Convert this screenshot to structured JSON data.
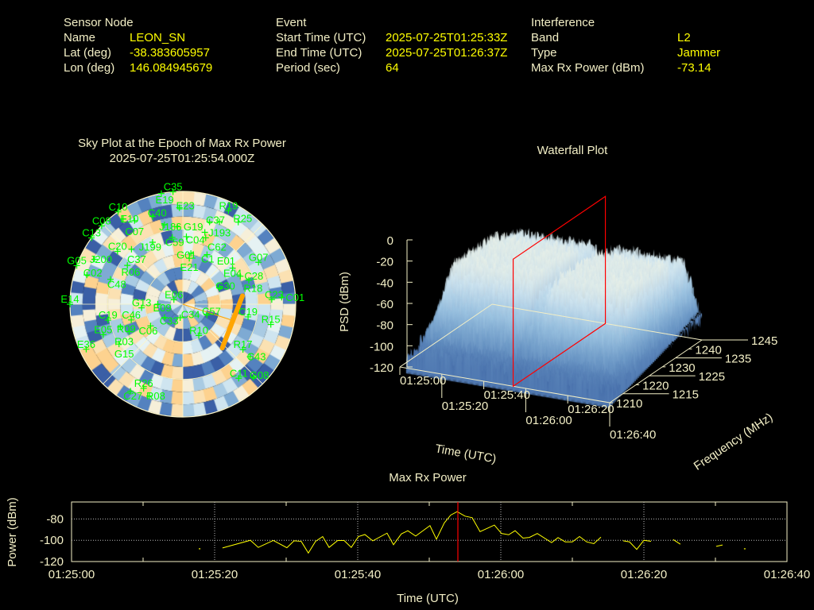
{
  "header": {
    "sensor": {
      "heading": "Sensor Node",
      "name_label": "Name",
      "name": "LEON_SN",
      "lat_label": "Lat (deg)",
      "lat": "-38.383605957",
      "lon_label": "Lon (deg)",
      "lon": "146.084945679"
    },
    "event": {
      "heading": "Event",
      "start_label": "Start Time (UTC)",
      "start": "2025-07-25T01:25:33Z",
      "end_label": "End Time (UTC)",
      "end": "2025-07-25T01:26:37Z",
      "period_label": "Period (sec)",
      "period": "64"
    },
    "interference": {
      "heading": "Interference",
      "band_label": "Band",
      "band": "L2",
      "type_label": "Type",
      "type": "Jammer",
      "power_label": "Max Rx Power (dBm)",
      "power": "-73.14"
    }
  },
  "colors": {
    "label": "#f3efc6",
    "value": "#ffff00",
    "satellite": "#00ff00",
    "jammer": "#ffa500",
    "marker": "#ff0000",
    "line": "#ffff00"
  },
  "chart_data": [
    {
      "type": "scatter",
      "name": "sky_plot",
      "title": "Sky Plot at the Epoch of Max Rx Power",
      "subtitle": "2025-07-25T01:25:54.000Z",
      "elevation_rings": [
        0,
        30,
        60
      ],
      "satellites": [
        {
          "id": "C35",
          "az": 355,
          "el": 0
        },
        {
          "id": "E19",
          "az": 349,
          "el": 0
        },
        {
          "id": "E23",
          "az": 358,
          "el": 13
        },
        {
          "id": "R19",
          "az": 26,
          "el": 7
        },
        {
          "id": "C10",
          "az": 325,
          "el": 0
        },
        {
          "id": "E10",
          "az": 325,
          "el": 7
        },
        {
          "id": "C07",
          "az": 330,
          "el": 13
        },
        {
          "id": "C40",
          "az": 341,
          "el": 16
        },
        {
          "id": "J186",
          "az": 347,
          "el": 25
        },
        {
          "id": "G19",
          "az": 356,
          "el": 28
        },
        {
          "id": "C37",
          "az": 18,
          "el": 21
        },
        {
          "id": "J193",
          "az": 24,
          "el": 18
        },
        {
          "id": "R25",
          "az": 34,
          "el": 11
        },
        {
          "id": "C08",
          "az": 314,
          "el": 0
        },
        {
          "id": "C04",
          "az": 17,
          "el": 30
        },
        {
          "id": "C59",
          "az": 351,
          "el": 36
        },
        {
          "id": "G01",
          "az": 3,
          "el": 36
        },
        {
          "id": "C62",
          "az": 19,
          "el": 34
        },
        {
          "id": "C13",
          "az": 306,
          "el": 0
        },
        {
          "id": "J199",
          "az": 334,
          "el": 35
        },
        {
          "id": "C20",
          "az": 309,
          "el": 23
        },
        {
          "id": "C37",
          "az": 317,
          "el": 30
        },
        {
          "id": "C1",
          "az": 9,
          "el": 49
        },
        {
          "id": "E21",
          "az": 8,
          "el": 53
        },
        {
          "id": "E01",
          "az": 26,
          "el": 46
        },
        {
          "id": "G05",
          "az": 290,
          "el": 0
        },
        {
          "id": "J200",
          "az": 297,
          "el": 11
        },
        {
          "id": "R06",
          "az": 305,
          "el": 36
        },
        {
          "id": "G07",
          "az": 61,
          "el": 21
        },
        {
          "id": "E04",
          "az": 54,
          "el": 41
        },
        {
          "id": "C02",
          "az": 287,
          "el": 10
        },
        {
          "id": "C48",
          "az": 289,
          "el": 29
        },
        {
          "id": "C28",
          "az": 64,
          "el": 39
        },
        {
          "id": "R18",
          "az": 70,
          "el": 34
        },
        {
          "id": "G30",
          "az": 66,
          "el": 58
        },
        {
          "id": "E06",
          "az": 297,
          "el": 82
        },
        {
          "id": "C23",
          "az": 87,
          "el": 19
        },
        {
          "id": "C01",
          "az": 86,
          "el": 11
        },
        {
          "id": "E14",
          "az": 270,
          "el": 0
        },
        {
          "id": "G13",
          "az": 265,
          "el": 57
        },
        {
          "id": "E09",
          "az": 270,
          "el": 70
        },
        {
          "id": "C33",
          "az": 234,
          "el": 72
        },
        {
          "id": "C34",
          "az": 191,
          "el": 79
        },
        {
          "id": "C57",
          "az": 114,
          "el": 69
        },
        {
          "id": "C19",
          "az": 101,
          "el": 37
        },
        {
          "id": "C19",
          "az": 258,
          "el": 29
        },
        {
          "id": "C46",
          "az": 253,
          "el": 47
        },
        {
          "id": "R15",
          "az": 103,
          "el": 18
        },
        {
          "id": "R09",
          "az": 250,
          "el": 37
        },
        {
          "id": "C06",
          "az": 236,
          "el": 59
        },
        {
          "id": "R10",
          "az": 153,
          "el": 62
        },
        {
          "id": "E05",
          "az": 249,
          "el": 22
        },
        {
          "id": "R03",
          "az": 243,
          "el": 42
        },
        {
          "id": "G15",
          "az": 238,
          "el": 30
        },
        {
          "id": "R17",
          "az": 127,
          "el": 30
        },
        {
          "id": "E36",
          "az": 245,
          "el": 5
        },
        {
          "id": "C43",
          "az": 128,
          "el": 22
        },
        {
          "id": "C11",
          "az": 143,
          "el": 16
        },
        {
          "id": "G08",
          "az": 136,
          "el": 9
        },
        {
          "id": "R26",
          "az": 205,
          "el": 16
        },
        {
          "id": "C27",
          "az": 211,
          "el": 9
        },
        {
          "id": "R08",
          "az": 200,
          "el": 12
        }
      ],
      "jammer_track": [
        {
          "az": 82,
          "el": 42
        },
        {
          "az": 138,
          "el": 43
        }
      ],
      "jammer_bearing": {
        "az": 108,
        "el": 49
      }
    },
    {
      "type": "area",
      "name": "waterfall_plot",
      "title": "Waterfall Plot",
      "zlabel": "PSD (dBm)",
      "xlabel": "Time (UTC)",
      "ylabel": "Frequency (MHz)",
      "zticks": [
        "0",
        "-20",
        "-40",
        "-60",
        "-80",
        "-100",
        "-120"
      ],
      "zlim": [
        -120,
        0
      ],
      "time_ticks": [
        "01:25:00",
        "01:25:20",
        "01:25:40",
        "01:26:00",
        "01:26:20",
        "01:26:40"
      ],
      "freq_ticks": [
        "1210",
        "1215",
        "1220",
        "1225",
        "1230",
        "1235",
        "1240",
        "1245"
      ],
      "freq_lim": [
        1210,
        1245
      ],
      "time_lim_sec": [
        0,
        100
      ],
      "marker_time_sec": 54
    },
    {
      "type": "line",
      "name": "max_rx_power",
      "title": "Max Rx Power",
      "xlabel": "Time (UTC)",
      "ylabel": "Power (dBm)",
      "xticks": [
        "01:25:00",
        "01:25:20",
        "01:25:40",
        "01:26:00",
        "01:26:20",
        "01:26:40"
      ],
      "yticks": [
        "-80",
        "-100",
        "-120"
      ],
      "ytick_values": [
        -80,
        -100,
        -120
      ],
      "xlim_sec": [
        0,
        100
      ],
      "ylim": [
        -120,
        -64
      ],
      "marker_time_sec": 54,
      "segments": [
        [
          [
            17.9,
            -108
          ]
        ],
        [
          [
            21.1,
            -107.2
          ],
          [
            25.0,
            -100
          ],
          [
            26.1,
            -106.7
          ],
          [
            28.2,
            -100.2
          ],
          [
            30.1,
            -107
          ],
          [
            31.1,
            -100.5
          ],
          [
            32.1,
            -101
          ],
          [
            33.1,
            -112
          ],
          [
            34.1,
            -101
          ],
          [
            35.1,
            -96.5
          ],
          [
            36.0,
            -106.7
          ],
          [
            37.2,
            -100.2
          ],
          [
            38.1,
            -100.2
          ],
          [
            39.1,
            -106.7
          ],
          [
            40.1,
            -96.5
          ],
          [
            41.0,
            -94.6
          ],
          [
            42.1,
            -100.5
          ],
          [
            44.1,
            -93.3
          ],
          [
            45.0,
            -104.2
          ],
          [
            46.1,
            -94
          ],
          [
            47.0,
            -91
          ],
          [
            48.1,
            -96
          ],
          [
            50.1,
            -86.2
          ],
          [
            51.0,
            -99
          ],
          [
            52.1,
            -83.7
          ],
          [
            53.0,
            -76.3
          ],
          [
            53.9,
            -73.1
          ],
          [
            55.0,
            -77.3
          ],
          [
            56.0,
            -78.8
          ],
          [
            57.1,
            -91.9
          ],
          [
            59.1,
            -85.7
          ],
          [
            60.1,
            -93.6
          ],
          [
            61.1,
            -94.8
          ],
          [
            62.0,
            -91
          ],
          [
            63.1,
            -98
          ],
          [
            64.0,
            -97.3
          ],
          [
            65.1,
            -93.6
          ],
          [
            67.1,
            -102.2
          ],
          [
            68.0,
            -97.5
          ],
          [
            69.0,
            -101.5
          ],
          [
            70.0,
            -101.5
          ],
          [
            71.0,
            -96.5
          ],
          [
            72.0,
            -101.5
          ],
          [
            73.0,
            -103.2
          ],
          [
            74.0,
            -97
          ]
        ],
        [
          [
            77.1,
            -100.5
          ],
          [
            78.0,
            -101.5
          ],
          [
            79.0,
            -108.6
          ],
          [
            80.0,
            -100
          ],
          [
            81.0,
            -101
          ]
        ],
        [
          [
            84.1,
            -99.3
          ],
          [
            85.1,
            -103.7
          ]
        ],
        [
          [
            90.1,
            -105.7
          ],
          [
            91.0,
            -104.4
          ]
        ],
        [
          [
            94.1,
            -108
          ]
        ]
      ]
    }
  ]
}
